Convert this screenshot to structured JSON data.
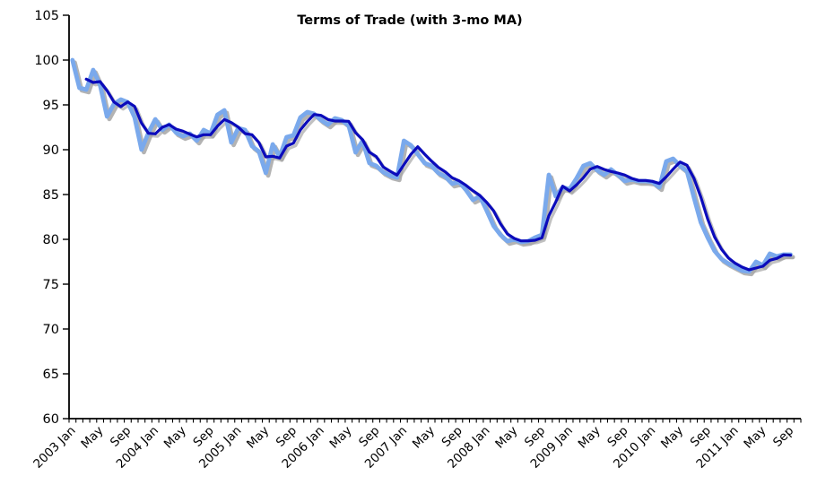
{
  "chart_data": {
    "type": "line",
    "title": "Terms of Trade (with 3-mo MA)",
    "xlabel": "",
    "ylabel": "",
    "grid": false,
    "legend": "none",
    "background": "#ffffff",
    "axis_color": "#000000",
    "y_axis": {
      "min": 60,
      "max": 105,
      "step": 5,
      "tick_labels": [
        "60",
        "65",
        "70",
        "75",
        "80",
        "85",
        "90",
        "95",
        "100",
        "105"
      ]
    },
    "x_axis": {
      "first_month": "2003 Jan",
      "last_month": "2011 Sep",
      "n_points": 105,
      "minor_tick_every_month": true,
      "label_every_n_months": 4,
      "tick_labels": [
        "2003 Jan",
        "May",
        "Sep",
        "2004 Jan",
        "May",
        "Sep",
        "2005 Jan",
        "May",
        "Sep",
        "2006 Jan",
        "May",
        "Sep",
        "2007 Jan",
        "May",
        "Sep",
        "2008 Jan",
        "May",
        "Sep",
        "2009 Jan",
        "May",
        "Sep",
        "2010 Jan",
        "May",
        "Sep",
        "2011 Jan",
        "May",
        "Sep"
      ]
    },
    "series": [
      {
        "name": "Terms of Trade (monthly)",
        "color": "#7AA9EC",
        "shadow_color": "#A6A6A6",
        "values": [
          100.0,
          96.9,
          96.7,
          98.9,
          97.2,
          93.7,
          95.1,
          95.6,
          95.3,
          93.6,
          90.0,
          91.9,
          93.4,
          92.2,
          92.8,
          91.9,
          91.5,
          91.8,
          91.0,
          92.2,
          91.8,
          93.9,
          94.4,
          90.8,
          92.4,
          92.2,
          90.4,
          89.8,
          87.4,
          90.6,
          89.2,
          91.4,
          91.6,
          93.6,
          94.2,
          94.0,
          93.3,
          92.8,
          93.5,
          93.3,
          92.7,
          89.7,
          91.0,
          88.5,
          88.2,
          87.5,
          87.1,
          86.9,
          91.0,
          90.5,
          89.5,
          88.5,
          88.2,
          87.4,
          87.0,
          86.2,
          86.4,
          85.5,
          84.4,
          84.8,
          83.2,
          81.5,
          80.5,
          79.8,
          80.0,
          79.7,
          79.8,
          80.2,
          80.5,
          87.2,
          84.8,
          85.8,
          85.6,
          86.8,
          88.2,
          88.5,
          87.7,
          87.2,
          87.8,
          87.2,
          86.5,
          86.7,
          86.5,
          86.5,
          86.4,
          85.8,
          88.7,
          89.0,
          88.2,
          87.6,
          84.7,
          81.9,
          80.2,
          78.7,
          77.8,
          77.3,
          76.9,
          76.5,
          76.4,
          77.5,
          77.1,
          78.4,
          78.1,
          78.3,
          78.3
        ]
      },
      {
        "name": "3-mo MA",
        "color": "#0B0BBB",
        "shadow_color": "#A6A6A6",
        "derived": "trailing moving average of monthly series",
        "window": 3
      }
    ]
  }
}
